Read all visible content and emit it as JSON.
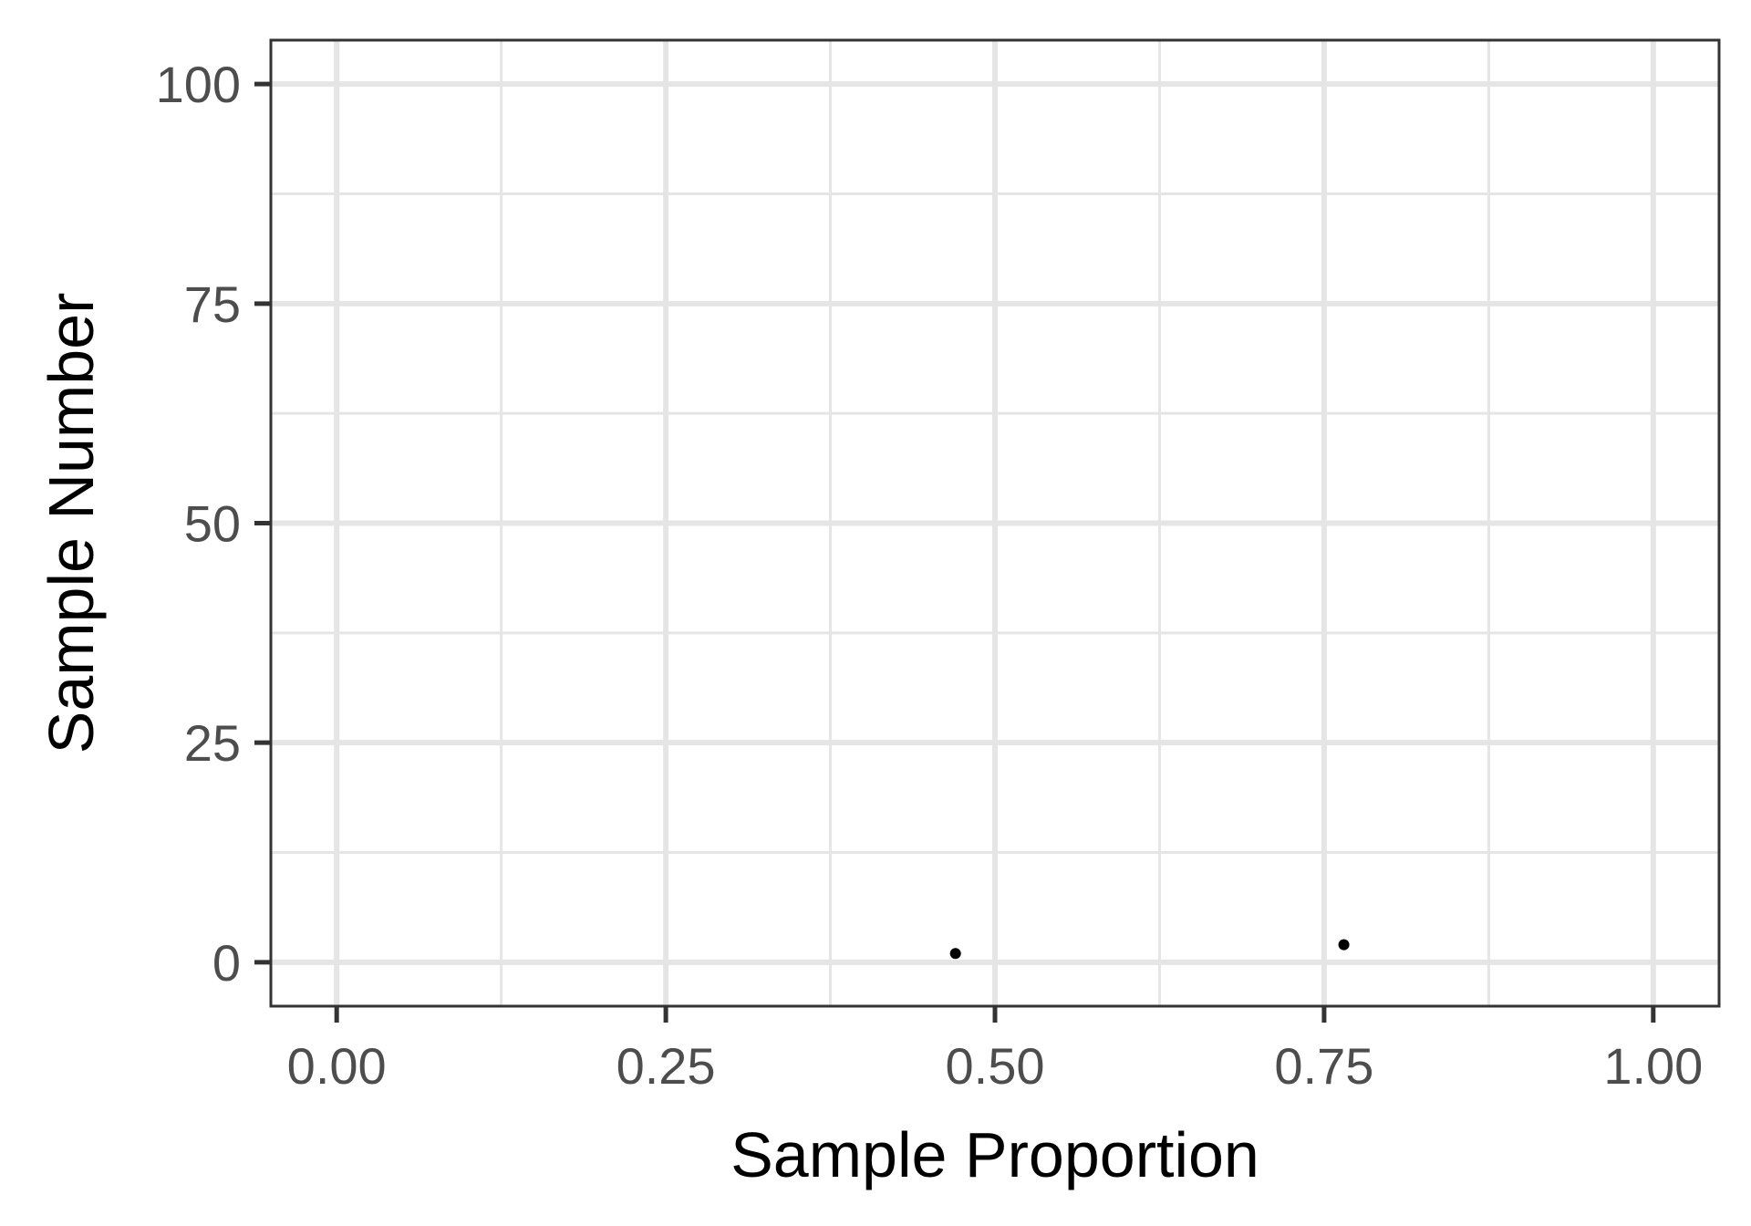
{
  "chart_data": {
    "type": "scatter",
    "xlabel": "Sample Proportion",
    "ylabel": "Sample Number",
    "xlim": [
      -0.05,
      1.05
    ],
    "ylim": [
      -5,
      105
    ],
    "x_ticks": [
      0,
      0.25,
      0.5,
      0.75,
      1
    ],
    "x_tick_labels": [
      "0.00",
      "0.25",
      "0.50",
      "0.75",
      "1.00"
    ],
    "y_ticks": [
      0,
      25,
      50,
      75,
      100
    ],
    "y_tick_labels": [
      "0",
      "25",
      "50",
      "75",
      "100"
    ],
    "grid": true,
    "legend": "none",
    "points": [
      {
        "x": 0.47,
        "y": 1
      },
      {
        "x": 0.765,
        "y": 2
      }
    ],
    "colors": {
      "point": "#000000",
      "grid": "#e5e5e5",
      "panel_border": "#333333",
      "tick_text": "#4d4d4d"
    }
  }
}
